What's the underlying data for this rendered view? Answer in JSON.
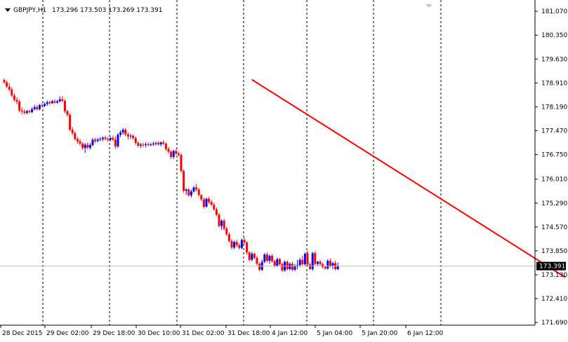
{
  "header": {
    "symbol": "GBPJPY,H1",
    "ohlc": "173.296 173.503 173.269 173.391"
  },
  "colors": {
    "background": "#ffffff",
    "up_candle": "#0000ff",
    "down_candle": "#ff0000",
    "trendline": "#ff0000",
    "grid": "#000000",
    "bid_line": "#c0c0c0",
    "price_tag_bg": "#000000",
    "price_tag_fg": "#ffffff"
  },
  "icons": {
    "header_toggle": "triangle-down-icon",
    "scroll_marker": "triangle-down-icon"
  },
  "chart_data": {
    "type": "candlestick",
    "ylim": [
      171.61,
      181.41
    ],
    "price_ticks": [
      "181.070",
      "180.350",
      "179.630",
      "178.910",
      "178.190",
      "177.470",
      "176.750",
      "176.010",
      "175.290",
      "174.570",
      "173.850",
      "173.130",
      "172.410",
      "171.690"
    ],
    "time_labels": [
      "28 Dec 2015",
      "29 Dec 02:00",
      "29 Dec 18:00",
      "30 Dec 10:00",
      "31 Dec 02:00",
      "31 Dec 18:00",
      "4 Jan 12:00",
      "5 Jan 04:00",
      "5 Jan 20:00",
      "6 Jan 12:00"
    ],
    "grid_vertical": "dashed",
    "current_price": "173.391",
    "trendline": {
      "from": {
        "bar": 98,
        "price": 179.01
      },
      "to": {
        "bar": 222,
        "price": 173.05
      }
    },
    "candles": [
      [
        179.0,
        179.05,
        178.88,
        178.93
      ],
      [
        178.93,
        178.98,
        178.76,
        178.8
      ],
      [
        178.8,
        178.9,
        178.66,
        178.71
      ],
      [
        178.71,
        178.78,
        178.48,
        178.53
      ],
      [
        178.53,
        178.6,
        178.35,
        178.4
      ],
      [
        178.4,
        178.48,
        178.27,
        178.35
      ],
      [
        178.35,
        178.4,
        178.02,
        178.08
      ],
      [
        178.08,
        178.18,
        177.96,
        178.05
      ],
      [
        178.05,
        178.12,
        177.96,
        178.01
      ],
      [
        178.01,
        178.1,
        177.96,
        178.06
      ],
      [
        178.06,
        178.11,
        177.98,
        178.03
      ],
      [
        178.03,
        178.18,
        178.0,
        178.12
      ],
      [
        178.12,
        178.25,
        178.08,
        178.18
      ],
      [
        178.18,
        178.25,
        178.08,
        178.12
      ],
      [
        178.12,
        178.28,
        178.08,
        178.24
      ],
      [
        178.24,
        178.3,
        178.18,
        178.22
      ],
      [
        178.22,
        178.32,
        178.18,
        178.28
      ],
      [
        178.28,
        178.38,
        178.22,
        178.33
      ],
      [
        178.33,
        178.38,
        178.25,
        178.3
      ],
      [
        178.3,
        178.4,
        178.28,
        178.36
      ],
      [
        178.36,
        178.42,
        178.28,
        178.32
      ],
      [
        178.32,
        178.4,
        178.28,
        178.36
      ],
      [
        178.36,
        178.5,
        178.32,
        178.42
      ],
      [
        178.42,
        178.52,
        178.33,
        178.37
      ],
      [
        178.37,
        178.42,
        178.0,
        178.06
      ],
      [
        178.06,
        178.1,
        177.9,
        177.95
      ],
      [
        177.95,
        178.0,
        177.46,
        177.5
      ],
      [
        177.5,
        177.58,
        177.34,
        177.4
      ],
      [
        177.4,
        177.45,
        177.18,
        177.22
      ],
      [
        177.22,
        177.28,
        177.08,
        177.15
      ],
      [
        177.15,
        177.22,
        177.02,
        177.08
      ],
      [
        177.08,
        177.12,
        176.9,
        176.95
      ],
      [
        176.95,
        177.1,
        176.8,
        177.05
      ],
      [
        177.05,
        177.12,
        176.91,
        176.96
      ],
      [
        176.96,
        177.1,
        176.9,
        177.04
      ],
      [
        177.04,
        177.25,
        177.0,
        177.2
      ],
      [
        177.2,
        177.25,
        177.1,
        177.16
      ],
      [
        177.16,
        177.26,
        177.12,
        177.2
      ],
      [
        177.2,
        177.28,
        177.15,
        177.22
      ],
      [
        177.22,
        177.3,
        177.16,
        177.26
      ],
      [
        177.26,
        177.32,
        177.18,
        177.22
      ],
      [
        177.22,
        177.28,
        177.14,
        177.2
      ],
      [
        177.2,
        177.3,
        177.15,
        177.25
      ],
      [
        177.25,
        177.32,
        177.16,
        177.2
      ],
      [
        177.2,
        177.3,
        176.92,
        177.0
      ],
      [
        177.0,
        177.4,
        176.95,
        177.35
      ],
      [
        177.35,
        177.48,
        177.28,
        177.42
      ],
      [
        177.42,
        177.55,
        177.35,
        177.5
      ],
      [
        177.5,
        177.55,
        177.3,
        177.36
      ],
      [
        177.36,
        177.42,
        177.2,
        177.3
      ],
      [
        177.3,
        177.38,
        177.22,
        177.32
      ],
      [
        177.32,
        177.36,
        177.2,
        177.25
      ],
      [
        177.25,
        177.3,
        177.05,
        177.1
      ],
      [
        177.1,
        177.15,
        176.97,
        177.02
      ],
      [
        177.02,
        177.1,
        176.95,
        177.05
      ],
      [
        177.05,
        177.1,
        176.98,
        177.04
      ],
      [
        177.04,
        177.12,
        176.97,
        177.06
      ],
      [
        177.06,
        177.12,
        177.0,
        177.05
      ],
      [
        177.05,
        177.1,
        177.0,
        177.06
      ],
      [
        177.06,
        177.14,
        177.01,
        177.08
      ],
      [
        177.08,
        177.14,
        177.02,
        177.1
      ],
      [
        177.1,
        177.16,
        177.02,
        177.06
      ],
      [
        177.06,
        177.14,
        177.0,
        177.12
      ],
      [
        177.12,
        177.18,
        177.04,
        177.08
      ],
      [
        177.08,
        177.12,
        176.86,
        176.92
      ],
      [
        176.92,
        176.98,
        176.78,
        176.84
      ],
      [
        176.84,
        176.88,
        176.62,
        176.68
      ],
      [
        176.68,
        176.9,
        176.62,
        176.86
      ],
      [
        176.86,
        176.92,
        176.73,
        176.78
      ],
      [
        176.78,
        176.84,
        176.7,
        176.74
      ],
      [
        176.74,
        176.8,
        176.2,
        176.26
      ],
      [
        176.26,
        176.3,
        175.6,
        175.66
      ],
      [
        175.66,
        175.74,
        175.54,
        175.7
      ],
      [
        175.7,
        175.74,
        175.48,
        175.52
      ],
      [
        175.52,
        175.7,
        175.46,
        175.64
      ],
      [
        175.64,
        175.8,
        175.6,
        175.76
      ],
      [
        175.76,
        175.86,
        175.64,
        175.7
      ],
      [
        175.7,
        175.74,
        175.49,
        175.53
      ],
      [
        175.53,
        175.56,
        175.35,
        175.4
      ],
      [
        175.4,
        175.45,
        175.13,
        175.18
      ],
      [
        175.18,
        175.46,
        175.15,
        175.42
      ],
      [
        175.42,
        175.48,
        175.26,
        175.32
      ],
      [
        175.32,
        175.38,
        175.2,
        175.24
      ],
      [
        175.24,
        175.3,
        175.06,
        175.1
      ],
      [
        175.1,
        175.16,
        174.9,
        174.94
      ],
      [
        174.94,
        175.0,
        174.55,
        174.6
      ],
      [
        174.6,
        174.8,
        174.48,
        174.76
      ],
      [
        174.76,
        174.82,
        174.46,
        174.52
      ],
      [
        174.52,
        174.58,
        174.3,
        174.35
      ],
      [
        174.35,
        174.4,
        174.1,
        174.15
      ],
      [
        174.15,
        174.2,
        173.9,
        173.95
      ],
      [
        173.95,
        174.16,
        173.9,
        174.12
      ],
      [
        174.12,
        174.18,
        173.96,
        174.02
      ],
      [
        174.02,
        174.08,
        173.89,
        173.94
      ],
      [
        173.94,
        174.22,
        173.9,
        174.18
      ],
      [
        174.18,
        174.25,
        174.05,
        174.1
      ],
      [
        174.1,
        174.14,
        173.74,
        173.8
      ],
      [
        173.8,
        173.84,
        173.53,
        173.58
      ],
      [
        173.58,
        173.82,
        173.54,
        173.76
      ],
      [
        173.76,
        173.8,
        173.6,
        173.64
      ],
      [
        173.64,
        173.7,
        173.41,
        173.46
      ],
      [
        173.46,
        173.5,
        173.24,
        173.28
      ],
      [
        173.28,
        173.58,
        173.24,
        173.52
      ],
      [
        173.52,
        173.78,
        173.48,
        173.74
      ],
      [
        173.74,
        173.8,
        173.5,
        173.55
      ],
      [
        173.55,
        173.74,
        173.46,
        173.7
      ],
      [
        173.7,
        173.75,
        173.5,
        173.54
      ],
      [
        173.54,
        173.58,
        173.36,
        173.4
      ],
      [
        173.4,
        173.65,
        173.36,
        173.6
      ],
      [
        173.6,
        173.64,
        173.41,
        173.45
      ],
      [
        173.45,
        173.5,
        173.21,
        173.26
      ],
      [
        173.26,
        173.56,
        173.22,
        173.52
      ],
      [
        173.52,
        173.56,
        173.26,
        173.3
      ],
      [
        173.3,
        173.5,
        173.26,
        173.46
      ],
      [
        173.46,
        173.52,
        173.24,
        173.28
      ],
      [
        173.28,
        173.45,
        173.24,
        173.4
      ],
      [
        173.4,
        173.58,
        173.3,
        173.42
      ],
      [
        173.42,
        173.64,
        173.36,
        173.58
      ],
      [
        173.58,
        173.7,
        173.4,
        173.45
      ],
      [
        173.45,
        173.8,
        173.4,
        173.76
      ],
      [
        173.76,
        173.86,
        173.4,
        173.44
      ],
      [
        173.44,
        173.5,
        173.28,
        173.3
      ],
      [
        173.3,
        173.82,
        173.25,
        173.78
      ],
      [
        173.78,
        173.84,
        173.4,
        173.46
      ],
      [
        173.46,
        173.55,
        173.4,
        173.52
      ],
      [
        173.52,
        173.58,
        173.4,
        173.45
      ],
      [
        173.45,
        173.5,
        173.32,
        173.36
      ],
      [
        173.36,
        173.42,
        173.28,
        173.32
      ],
      [
        173.32,
        173.6,
        173.28,
        173.55
      ],
      [
        173.55,
        173.62,
        173.35,
        173.4
      ],
      [
        173.4,
        173.52,
        173.3,
        173.48
      ],
      [
        173.48,
        173.55,
        173.26,
        173.3
      ],
      [
        173.3,
        173.5,
        173.27,
        173.39
      ]
    ]
  }
}
